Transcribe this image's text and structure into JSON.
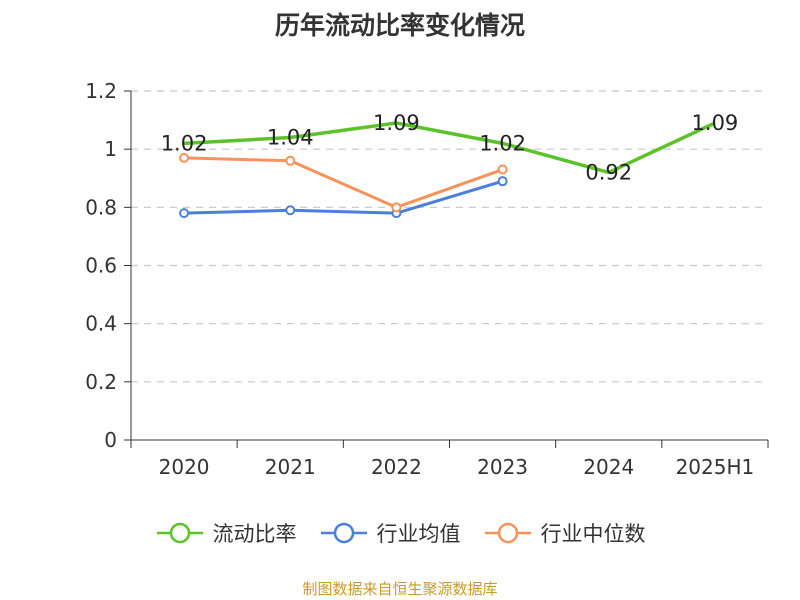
{
  "chart_data": {
    "type": "line",
    "title": "历年流动比率变化情况",
    "categories": [
      "2020",
      "2021",
      "2022",
      "2023",
      "2024",
      "2025H1"
    ],
    "series": [
      {
        "name": "流动比率",
        "color": "#5cc22a",
        "values": [
          1.02,
          1.04,
          1.09,
          1.02,
          0.92,
          1.09
        ],
        "labels": [
          "1.02",
          "1.04",
          "1.09",
          "1.02",
          "0.92",
          "1.09"
        ]
      },
      {
        "name": "行业均值",
        "color": "#4a7fdb",
        "values": [
          0.78,
          0.79,
          0.78,
          0.89,
          null,
          null
        ]
      },
      {
        "name": "行业中位数",
        "color": "#f5935a",
        "values": [
          0.97,
          0.96,
          0.8,
          0.93,
          null,
          null
        ]
      }
    ],
    "ylim": [
      0,
      1.2
    ],
    "yticks": [
      "0",
      "0.2",
      "0.4",
      "0.6",
      "0.8",
      "1",
      "1.2"
    ],
    "grid": true,
    "legend_position": "bottom"
  },
  "source_text": "制图数据来自恒生聚源数据库"
}
